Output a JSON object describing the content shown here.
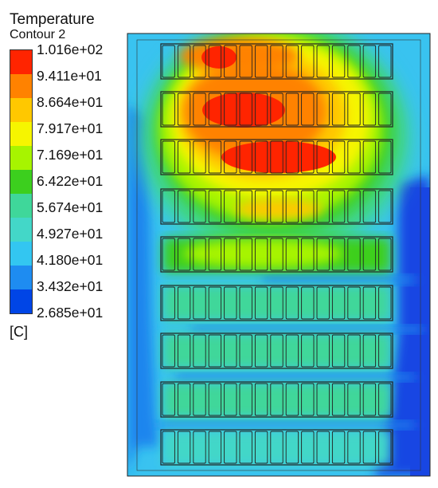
{
  "legend": {
    "title": "Temperature",
    "subtitle": "Contour 2",
    "unit": "[C]",
    "labels": [
      "1.016e+02",
      "9.411e+01",
      "8.664e+01",
      "7.917e+01",
      "7.169e+01",
      "6.422e+01",
      "5.674e+01",
      "4.927e+01",
      "4.180e+01",
      "3.432e+01",
      "2.685e+01"
    ],
    "band_colors": [
      "#ff2400",
      "#ff8200",
      "#ffc800",
      "#f6f500",
      "#a7f400",
      "#3ccf1e",
      "#3fd79a",
      "#43d7c8",
      "#33c6f1",
      "#1e8cf1",
      "#0045e6"
    ]
  },
  "colors": {
    "background": "#ffffff",
    "domain_fill": "#39c3f0",
    "cool_zone": "#1a85ee",
    "cold_zone": "#1846e3",
    "outline": "#222222"
  }
}
